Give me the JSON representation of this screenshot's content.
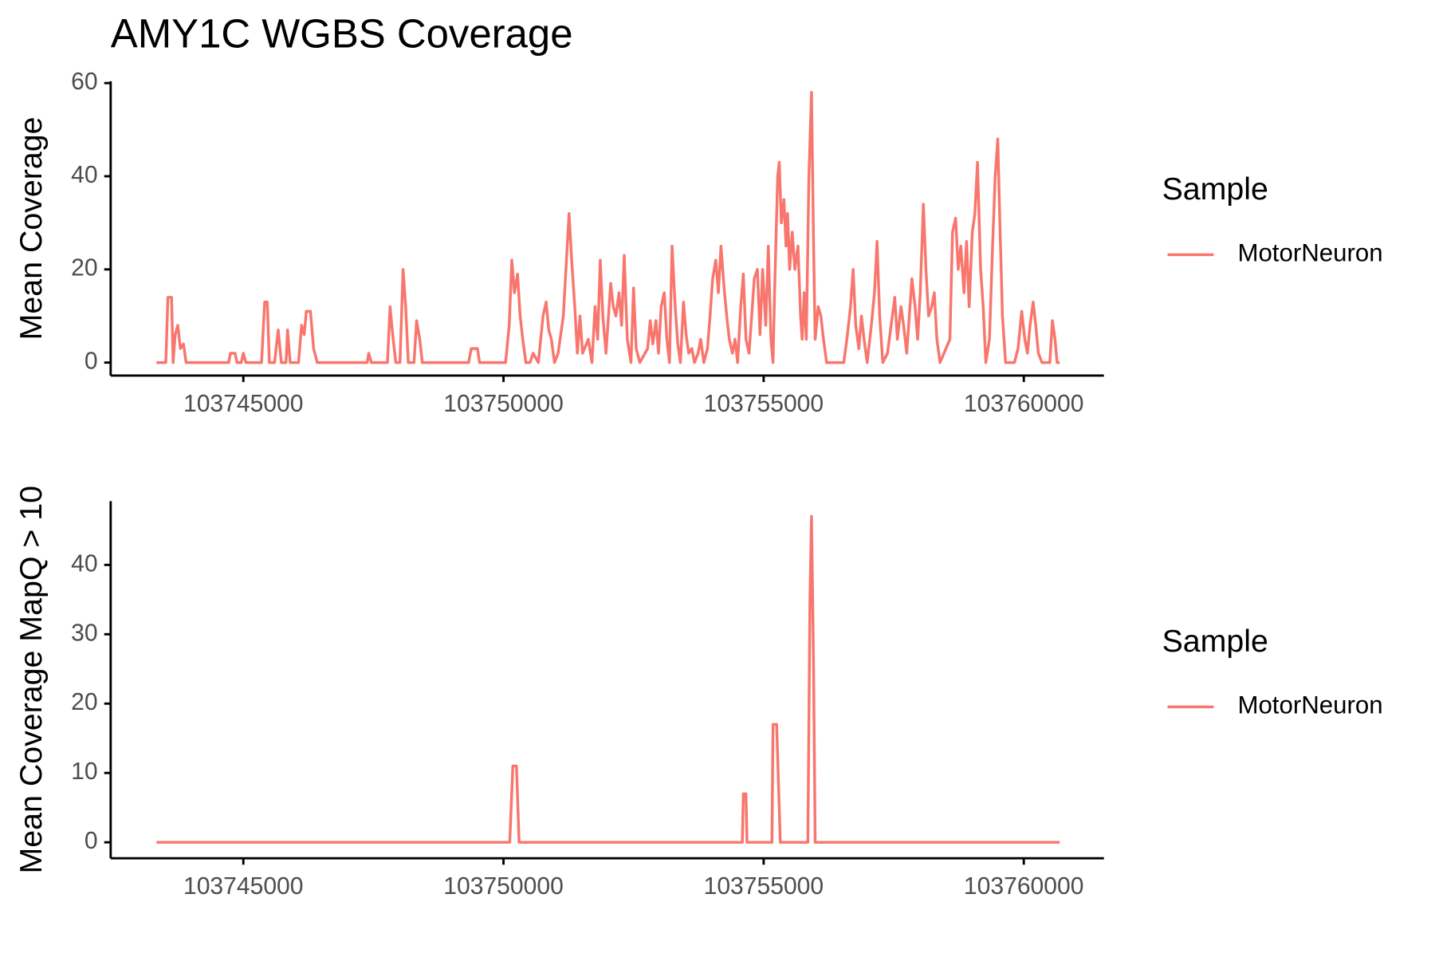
{
  "chart_data": [
    {
      "type": "line",
      "title": "AMY1C WGBS Coverage",
      "y_label": "Mean Coverage",
      "legend_title": "Sample",
      "legend_position": "right",
      "grid": false,
      "x": [
        103743330,
        103743510,
        103743550,
        103743620,
        103743650,
        103743690,
        103743740,
        103743790,
        103743850,
        103743900,
        103744720,
        103744750,
        103744840,
        103744880,
        103744960,
        103745000,
        103745050,
        103745350,
        103745410,
        103745460,
        103745500,
        103745600,
        103745670,
        103745730,
        103745820,
        103745850,
        103745900,
        103746060,
        103746120,
        103746170,
        103746210,
        103746290,
        103746350,
        103746420,
        103747380,
        103747410,
        103747460,
        103747770,
        103747820,
        103747870,
        103747930,
        103748010,
        103748070,
        103748120,
        103748170,
        103748280,
        103748330,
        103748390,
        103748440,
        103749330,
        103749380,
        103749500,
        103749540,
        103750040,
        103750110,
        103750160,
        103750210,
        103750270,
        103750320,
        103750370,
        103750430,
        103750510,
        103750570,
        103750670,
        103750760,
        103750820,
        103750870,
        103750920,
        103750980,
        103751050,
        103751150,
        103751210,
        103751260,
        103751310,
        103751370,
        103751420,
        103751470,
        103751520,
        103751630,
        103751700,
        103751760,
        103751810,
        103751860,
        103751910,
        103751970,
        103752060,
        103752110,
        103752160,
        103752220,
        103752270,
        103752320,
        103752380,
        103752450,
        103752500,
        103752550,
        103752620,
        103752770,
        103752820,
        103752870,
        103752930,
        103752980,
        103753030,
        103753090,
        103753140,
        103753190,
        103753240,
        103753300,
        103753350,
        103753400,
        103753460,
        103753510,
        103753560,
        103753620,
        103753670,
        103753740,
        103753790,
        103753850,
        103753920,
        103753970,
        103754020,
        103754080,
        103754130,
        103754180,
        103754240,
        103754290,
        103754340,
        103754400,
        103754450,
        103754500,
        103754560,
        103754610,
        103754660,
        103754720,
        103754770,
        103754820,
        103754880,
        103754930,
        103754980,
        103755040,
        103755090,
        103755140,
        103755180,
        103755210,
        103755270,
        103755300,
        103755340,
        103755390,
        103755430,
        103755460,
        103755500,
        103755550,
        103755600,
        103755660,
        103755710,
        103755740,
        103755780,
        103755820,
        103755870,
        103755920,
        103755960,
        103755990,
        103756050,
        103756100,
        103756150,
        103756210,
        103756540,
        103756600,
        103756670,
        103756720,
        103756770,
        103756830,
        103756880,
        103756930,
        103756990,
        103757070,
        103757130,
        103757180,
        103757230,
        103757290,
        103757380,
        103757450,
        103757520,
        103757570,
        103757640,
        103757690,
        103757750,
        103757800,
        103757850,
        103757910,
        103757960,
        103758010,
        103758070,
        103758120,
        103758170,
        103758230,
        103758280,
        103758330,
        103758390,
        103758580,
        103758630,
        103758690,
        103758740,
        103758790,
        103758850,
        103758900,
        103758950,
        103759010,
        103759060,
        103759110,
        103759170,
        103759220,
        103759270,
        103759340,
        103759400,
        103759450,
        103759500,
        103759540,
        103759590,
        103759650,
        103759820,
        103759890,
        103759960,
        103760020,
        103760070,
        103760120,
        103760180,
        103760230,
        103760280,
        103760350,
        103760500,
        103760550,
        103760600,
        103760640,
        103760690
      ],
      "series": [
        {
          "name": "MotorNeuron",
          "color": "#F8766D",
          "values": [
            0,
            0,
            14,
            14,
            0,
            6,
            8,
            3,
            4,
            0,
            0,
            2,
            2,
            0,
            0,
            2,
            0,
            0,
            13,
            13,
            0,
            0,
            7,
            0,
            0,
            7,
            0,
            0,
            8,
            6,
            11,
            11,
            3,
            0,
            0,
            2,
            0,
            0,
            12,
            6,
            0,
            0,
            20,
            12,
            0,
            0,
            9,
            5,
            0,
            0,
            3,
            3,
            0,
            0,
            8,
            22,
            15,
            19,
            10,
            5,
            0,
            0,
            2,
            0,
            10,
            13,
            7,
            5,
            0,
            2,
            10,
            22,
            32,
            22,
            12,
            2,
            10,
            2,
            5,
            0,
            12,
            5,
            22,
            10,
            2,
            17,
            12,
            10,
            15,
            8,
            23,
            5,
            0,
            16,
            3,
            0,
            3,
            9,
            4,
            9,
            2,
            12,
            15,
            5,
            0,
            25,
            12,
            4,
            0,
            13,
            6,
            2,
            3,
            0,
            2,
            5,
            0,
            3,
            10,
            18,
            22,
            15,
            25,
            16,
            10,
            5,
            2,
            5,
            0,
            12,
            19,
            5,
            2,
            10,
            18,
            20,
            6,
            20,
            8,
            25,
            5,
            0,
            15,
            40,
            43,
            30,
            35,
            25,
            32,
            20,
            28,
            20,
            25,
            10,
            5,
            15,
            5,
            40,
            58,
            25,
            5,
            12,
            10,
            5,
            0,
            0,
            5,
            12,
            20,
            8,
            3,
            10,
            5,
            0,
            8,
            15,
            26,
            10,
            0,
            2,
            8,
            14,
            5,
            12,
            8,
            2,
            10,
            18,
            12,
            5,
            15,
            34,
            20,
            10,
            12,
            15,
            5,
            0,
            5,
            28,
            31,
            20,
            25,
            15,
            26,
            12,
            28,
            32,
            43,
            20,
            12,
            0,
            5,
            25,
            40,
            48,
            30,
            10,
            0,
            0,
            3,
            11,
            5,
            2,
            8,
            13,
            8,
            2,
            0,
            0,
            9,
            5,
            0,
            0
          ]
        }
      ],
      "xlim": [
        103742450,
        103761540
      ],
      "xticks": [
        103745000,
        103750000,
        103755000,
        103760000
      ],
      "ylim": [
        -2.8,
        60.4
      ],
      "yticks": [
        0,
        20,
        40,
        60
      ]
    },
    {
      "type": "line",
      "y_label": "Mean Coverage MapQ > 10",
      "legend_title": "Sample",
      "legend_position": "right",
      "grid": false,
      "x": [
        103743330,
        103750120,
        103750180,
        103750250,
        103750300,
        103754590,
        103754610,
        103754660,
        103754680,
        103755160,
        103755180,
        103755250,
        103755320,
        103755850,
        103755890,
        103755920,
        103755960,
        103755990,
        103760690
      ],
      "series": [
        {
          "name": "MotorNeuron",
          "color": "#F8766D",
          "values": [
            0,
            0,
            11,
            11,
            0,
            0,
            7,
            7,
            0,
            0,
            17,
            17,
            0,
            0,
            35,
            47,
            25,
            0,
            0
          ]
        }
      ],
      "xlim": [
        103742450,
        103761540
      ],
      "xticks": [
        103745000,
        103750000,
        103755000,
        103760000
      ],
      "ylim": [
        -2.3,
        49.2
      ],
      "yticks": [
        0,
        10,
        20,
        30,
        40
      ]
    }
  ]
}
